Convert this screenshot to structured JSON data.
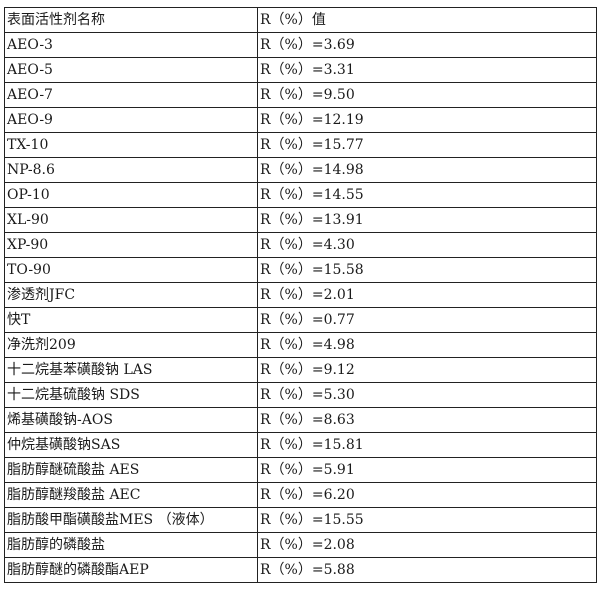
{
  "table": {
    "headers": [
      "表面活性剂名称",
      "R（%）值"
    ],
    "rows": [
      {
        "name": "AEO-3",
        "value": "R（%）=3.69"
      },
      {
        "name": "AEO-5",
        "value": "R（%）=3.31"
      },
      {
        "name": "AEO-7",
        "value": "R（%）=9.50"
      },
      {
        "name": "AEO-9",
        "value": "R（%）=12.19"
      },
      {
        "name": "TX-10",
        "value": "R（%）=15.77"
      },
      {
        "name": "NP-8.6",
        "value": "R（%）=14.98"
      },
      {
        "name": "OP-10",
        "value": "R（%）=14.55"
      },
      {
        "name": "XL-90",
        "value": "R（%）=13.91"
      },
      {
        "name": "XP-90",
        "value": "R（%）=4.30"
      },
      {
        "name": "TO-90",
        "value": "R（%）=15.58"
      },
      {
        "name": "渗透剂JFC",
        "value": "R（%）=2.01"
      },
      {
        "name": "快T",
        "value": "R（%）=0.77"
      },
      {
        "name": "净洗剂209",
        "value": "R（%）=4.98"
      },
      {
        "name": "十二烷基苯磺酸钠 LAS",
        "value": "R（%）=9.12"
      },
      {
        "name": "十二烷基硫酸钠 SDS",
        "value": "R（%）=5.30"
      },
      {
        "name": "烯基磺酸钠-AOS",
        "value": "R（%）=8.63"
      },
      {
        "name": "仲烷基磺酸钠SAS",
        "value": "R（%）=15.81"
      },
      {
        "name": "脂肪醇醚硫酸盐 AES",
        "value": "R（%）=5.91"
      },
      {
        "name": "脂肪醇醚羧酸盐 AEC",
        "value": "R（%）=6.20"
      },
      {
        "name": "脂肪酸甲酯磺酸盐MES （液体）",
        "value": "R（%）=15.55"
      },
      {
        "name": "脂肪醇的磷酸盐",
        "value": "R（%）=2.08"
      },
      {
        "name": "脂肪醇醚的磷酸酯AEP",
        "value": "R（%）=5.88"
      }
    ]
  }
}
